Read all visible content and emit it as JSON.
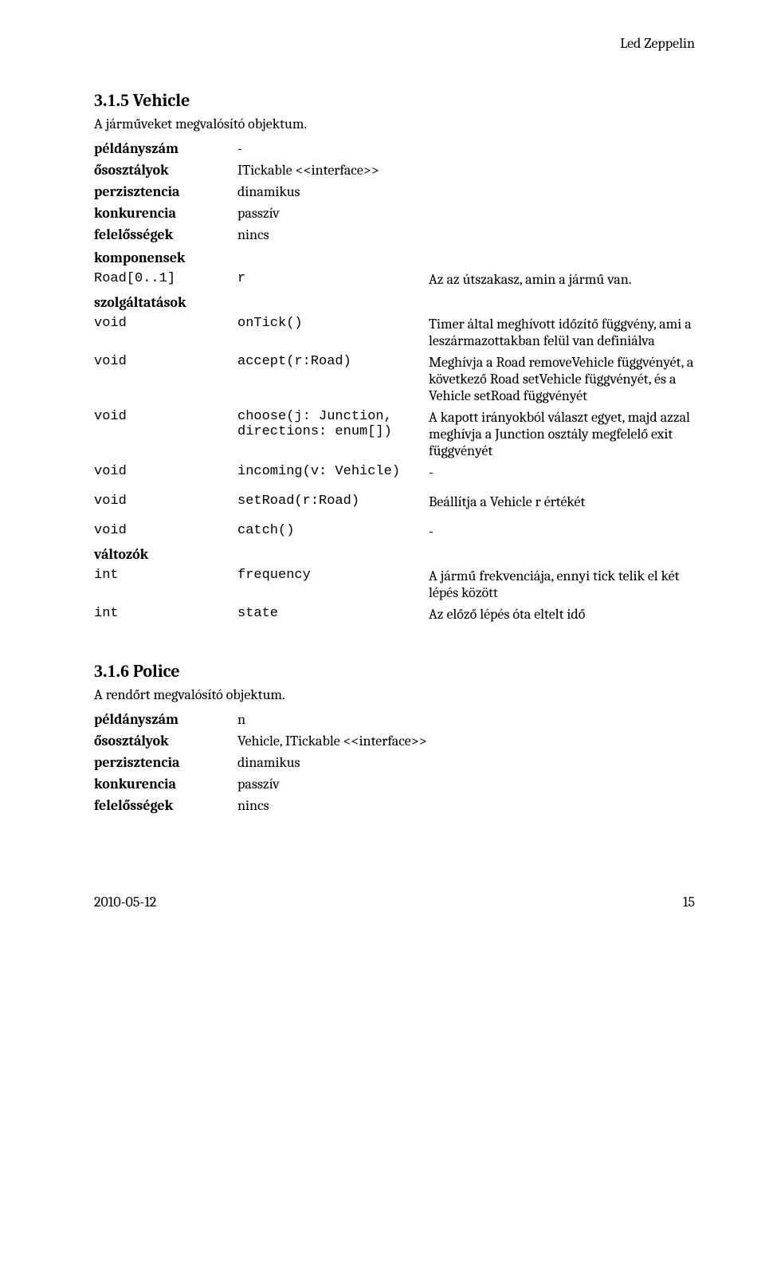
{
  "header": {
    "project": "Led Zeppelin"
  },
  "section315": {
    "number": "3.1.5",
    "title": "Vehicle",
    "desc": "A járműveket megvalósító objektum.",
    "defs": {
      "peldanyszam_label": "példányszám",
      "peldanyszam_value": "-",
      "ososztalyok_label": "ősosztályok",
      "ososztalyok_value": "ITickable <<interface>>",
      "perzisztencia_label": "perzisztencia",
      "perzisztencia_value": "dinamikus",
      "konkurencia_label": "konkurencia",
      "konkurencia_value": "passzív",
      "felelossegek_label": "felelősségek",
      "felelossegek_value": "nincs",
      "komponensek_label": "komponensek",
      "szolgaltatasok_label": "szolgáltatások",
      "valtozok_label": "változók"
    },
    "components": [
      {
        "type": "Road[0..1]",
        "name": "r",
        "desc": "Az az útszakasz, amin a jármű van."
      }
    ],
    "services": [
      {
        "type": "void",
        "name": "onTick()",
        "desc": "Timer által meghívott időzítő függvény, ami a leszármazottakban felül van definiálva"
      },
      {
        "type": "void",
        "name": "accept(r:Road)",
        "desc": "Meghívja a Road removeVehicle függvényét, a következő Road setVehicle függvényét, és a Vehicle setRoad függvényét"
      },
      {
        "type": "void",
        "name": "choose(j: Junction, directions: enum[])",
        "desc": "A kapott irányokból választ egyet, majd azzal meghívja a Junction osztály megfelelő exit függvényét"
      },
      {
        "type": "void",
        "name": "incoming(v: Vehicle)",
        "desc": "-"
      },
      {
        "type": "void",
        "name": "setRoad(r:Road)",
        "desc": "Beállítja a Vehicle r értékét"
      },
      {
        "type": "void",
        "name": "catch()",
        "desc": "-"
      }
    ],
    "vars": [
      {
        "type": "int",
        "name": "frequency",
        "desc": "A jármű frekvenciája, ennyi tick telik el két lépés között"
      },
      {
        "type": "int",
        "name": "state",
        "desc": "Az előző lépés óta eltelt idő"
      }
    ]
  },
  "section316": {
    "number": "3.1.6",
    "title": "Police",
    "desc": "A rendőrt megvalósító objektum.",
    "defs": {
      "peldanyszam_label": "példányszám",
      "peldanyszam_value": "n",
      "ososztalyok_label": "ősosztályok",
      "ososztalyok_value": "Vehicle, ITickable <<interface>>",
      "perzisztencia_label": "perzisztencia",
      "perzisztencia_value": "dinamikus",
      "konkurencia_label": "konkurencia",
      "konkurencia_value": "passzív",
      "felelossegek_label": "felelősségek",
      "felelossegek_value": "nincs"
    }
  },
  "footer": {
    "date": "2010-05-12",
    "page": "15"
  }
}
